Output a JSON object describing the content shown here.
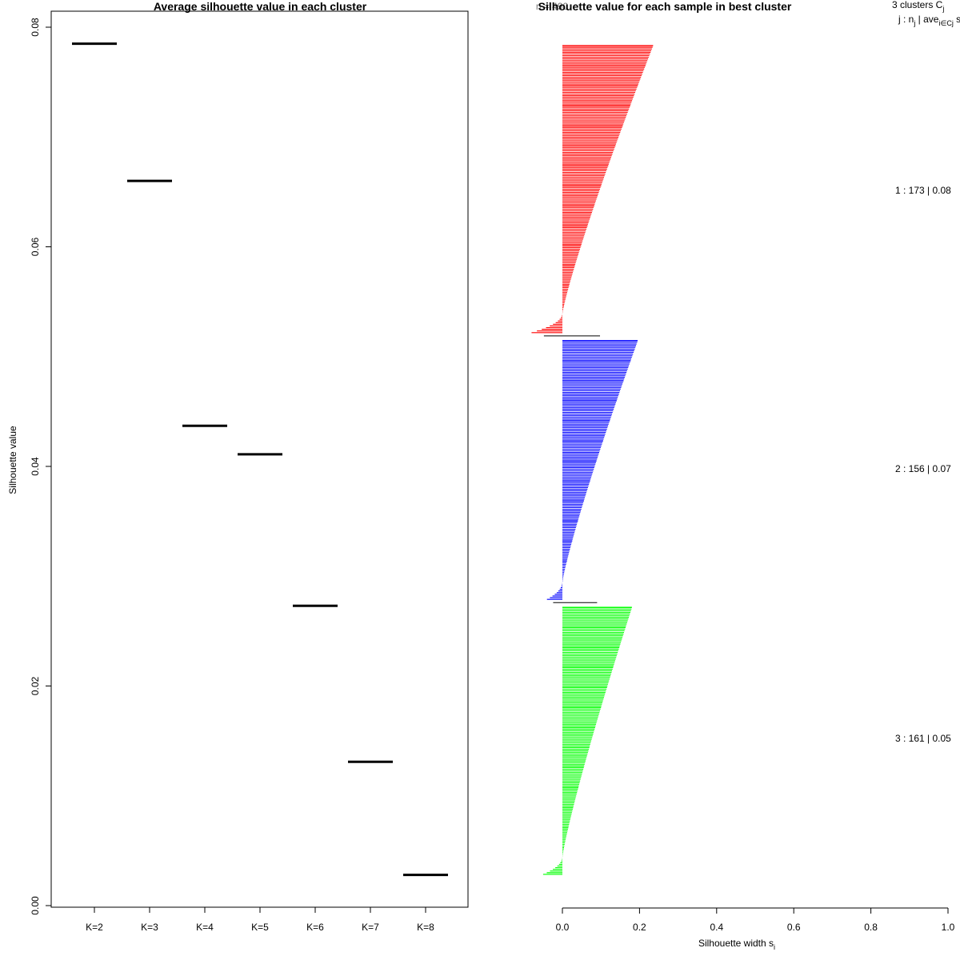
{
  "chart_data": [
    {
      "type": "segment",
      "title": "Average silhouette value in each cluster",
      "xlabel": "",
      "ylabel": "Silhouette value",
      "categories": [
        "K=2",
        "K=3",
        "K=4",
        "K=5",
        "K=6",
        "K=7",
        "K=8"
      ],
      "values": [
        0.0785,
        0.066,
        0.0437,
        0.0411,
        0.0273,
        0.0131,
        0.0028
      ],
      "ylim": [
        0,
        0.0815
      ],
      "yticks": [
        0.0,
        0.02,
        0.04,
        0.06,
        0.08
      ],
      "ytick_labels": [
        "0.00",
        "0.02",
        "0.04",
        "0.06",
        "0.08"
      ],
      "color": "#000000"
    },
    {
      "type": "silhouette",
      "title": "Silhouette value for each sample in best cluster",
      "title_overlay": "n = 490",
      "xlabel": "Silhouette width s",
      "xlabel_subscript": "i",
      "xlim": [
        0,
        1.0
      ],
      "xticks": [
        0.0,
        0.2,
        0.4,
        0.6,
        0.8,
        1.0
      ],
      "xtick_labels": [
        "0.0",
        "0.2",
        "0.4",
        "0.6",
        "0.8",
        "1.0"
      ],
      "n_total": 490,
      "legend": {
        "header": "3 clusters C",
        "header_subscript": "j",
        "subheader": "j : n",
        "subheader_rest": " | ave",
        "subheader_sub": "i∈Cj",
        "subheader_tail": " s"
      },
      "clusters": [
        {
          "id": 1,
          "n": 173,
          "avg_label": "0.08",
          "label": "1 :  173  |  0.08",
          "color": "#ff0000",
          "max_width": 0.235,
          "min_width": -0.08
        },
        {
          "id": 2,
          "n": 156,
          "avg_label": "0.07",
          "label": "2 :  156  |  0.07",
          "color": "#0000ff",
          "max_width": 0.195,
          "min_width": -0.04
        },
        {
          "id": 3,
          "n": 161,
          "avg_label": "0.05",
          "label": "3 :  161  |  0.05",
          "color": "#00ff00",
          "max_width": 0.18,
          "min_width": -0.05
        }
      ]
    }
  ]
}
